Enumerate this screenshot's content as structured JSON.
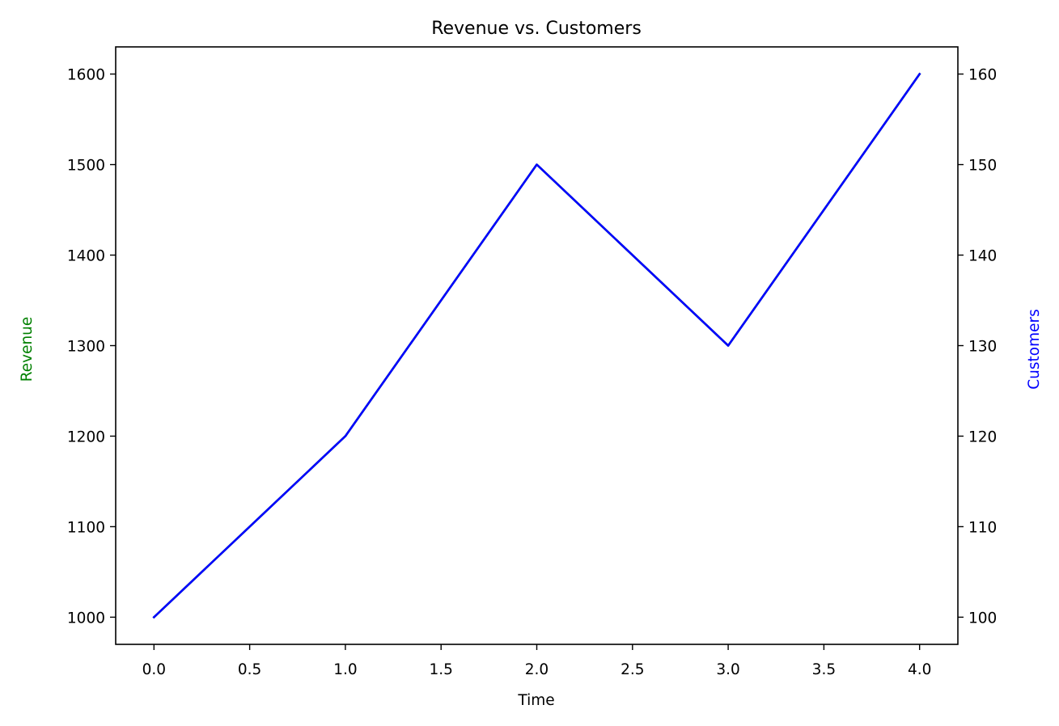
{
  "chart_data": {
    "type": "line",
    "title": "Revenue vs. Customers",
    "xlabel": "Time",
    "ylabel_left": "Revenue",
    "ylabel_right": "Customers",
    "x": [
      0,
      1,
      2,
      3,
      4
    ],
    "xlim": [
      -0.2,
      4.2
    ],
    "x_ticks": [
      "0.0",
      "0.5",
      "1.0",
      "1.5",
      "2.0",
      "2.5",
      "3.0",
      "3.5",
      "4.0"
    ],
    "x_tick_values": [
      0,
      0.5,
      1,
      1.5,
      2,
      2.5,
      3,
      3.5,
      4
    ],
    "ylim_left": [
      970,
      1630
    ],
    "y_left_ticks": [
      "1000",
      "1100",
      "1200",
      "1300",
      "1400",
      "1500",
      "1600"
    ],
    "y_left_tick_values": [
      1000,
      1100,
      1200,
      1300,
      1400,
      1500,
      1600
    ],
    "ylim_right": [
      97,
      163
    ],
    "y_right_ticks": [
      "100",
      "110",
      "120",
      "130",
      "140",
      "150",
      "160"
    ],
    "y_right_tick_values": [
      100,
      110,
      120,
      130,
      140,
      150,
      160
    ],
    "series": [
      {
        "name": "Revenue",
        "axis": "left",
        "color": "#008000",
        "values": [
          1000,
          1200,
          1500,
          1300,
          1600
        ]
      },
      {
        "name": "Customers",
        "axis": "right",
        "color": "#0000ff",
        "values": [
          100,
          120,
          150,
          130,
          160
        ]
      }
    ],
    "left_label_color": "#008000",
    "right_label_color": "#0000ff",
    "grid": false,
    "legend": "none"
  }
}
